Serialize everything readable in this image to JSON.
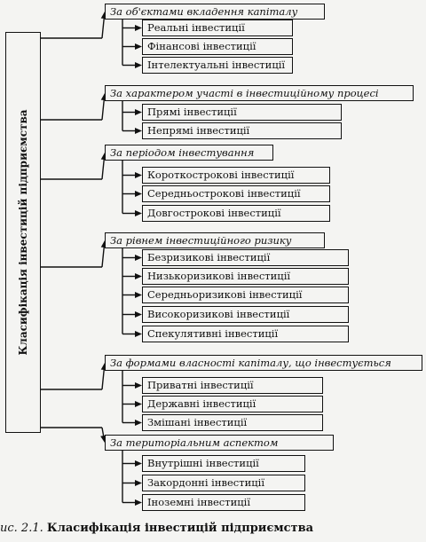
{
  "root": {
    "label": "Класифікація інвестицій підприємства"
  },
  "groups": [
    {
      "label": "За об'єктами вкладення капіталу",
      "items": [
        "Реальні інвестиції",
        "Фінансові інвестиції",
        "Інтелектуальні інвестиції"
      ]
    },
    {
      "label": "За характером участі в інвестиційному процесі",
      "items": [
        "Прямі інвестиції",
        "Непрямі інвестиції"
      ]
    },
    {
      "label": "За періодом інвестування",
      "items": [
        "Короткострокові інвестиції",
        "Середньострокові інвестиції",
        "Довгострокові інвестиції"
      ]
    },
    {
      "label": "За рівнем інвестиційного ризику",
      "items": [
        "Безризикові інвестиції",
        "Низькоризикові інвестиції",
        "Середньоризикові інвестиції",
        "Високоризикові інвестиції",
        "Спекулятивні інвестиції"
      ]
    },
    {
      "label": "За формами власності капіталу, що інвестується",
      "items": [
        "Приватні інвестиції",
        "Державні інвестиції",
        "Змішані інвестиції"
      ]
    },
    {
      "label": "За територіальним аспектом",
      "items": [
        "Внутрішні інвестиції",
        "Закордонні інвестиції",
        "Іноземні інвестиції"
      ]
    }
  ],
  "caption": {
    "prefix": "ис. 2.1.",
    "title": "Класифікація інвестицій підприємства"
  }
}
